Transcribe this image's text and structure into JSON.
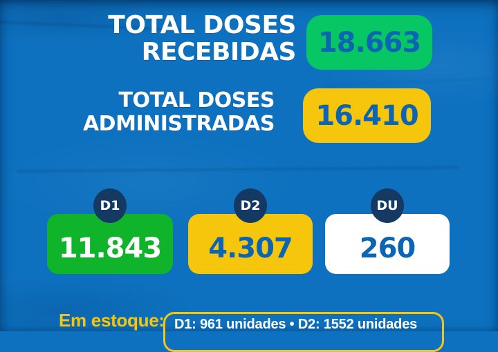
{
  "palette": {
    "background_blue": "#0d71bf",
    "emerald_badge": "#07c764",
    "yellow": "#f6c60d",
    "card_green": "#10b42a",
    "navy_circle": "#143a63",
    "number_blue": "#0b64b4",
    "white": "#ffffff"
  },
  "totals": [
    {
      "line1": "TOTAL DOSES",
      "line2": "RECEBIDAS",
      "value": "18.663"
    },
    {
      "line1": "TOTAL DOSES",
      "line2": "ADMINISTRADAS",
      "value": "16.410"
    }
  ],
  "doses": [
    {
      "tag": "D1",
      "value": "11.843"
    },
    {
      "tag": "D2",
      "value": "4.307"
    },
    {
      "tag": "DU",
      "value": "260"
    }
  ],
  "stock": {
    "label": "Em estoque:",
    "detail": "D1: 961 unidades • D2: 1552 unidades"
  },
  "chart_data": {
    "type": "table",
    "title": "Doses de vacina — totais e estoque",
    "rows": [
      {
        "label": "Total doses recebidas",
        "value": 18663
      },
      {
        "label": "Total doses administradas",
        "value": 16410
      },
      {
        "label": "D1 administradas",
        "value": 11843
      },
      {
        "label": "D2 administradas",
        "value": 4307
      },
      {
        "label": "DU administradas",
        "value": 260
      },
      {
        "label": "Em estoque D1 (unidades)",
        "value": 961
      },
      {
        "label": "Em estoque D2 (unidades)",
        "value": 1552
      }
    ]
  }
}
